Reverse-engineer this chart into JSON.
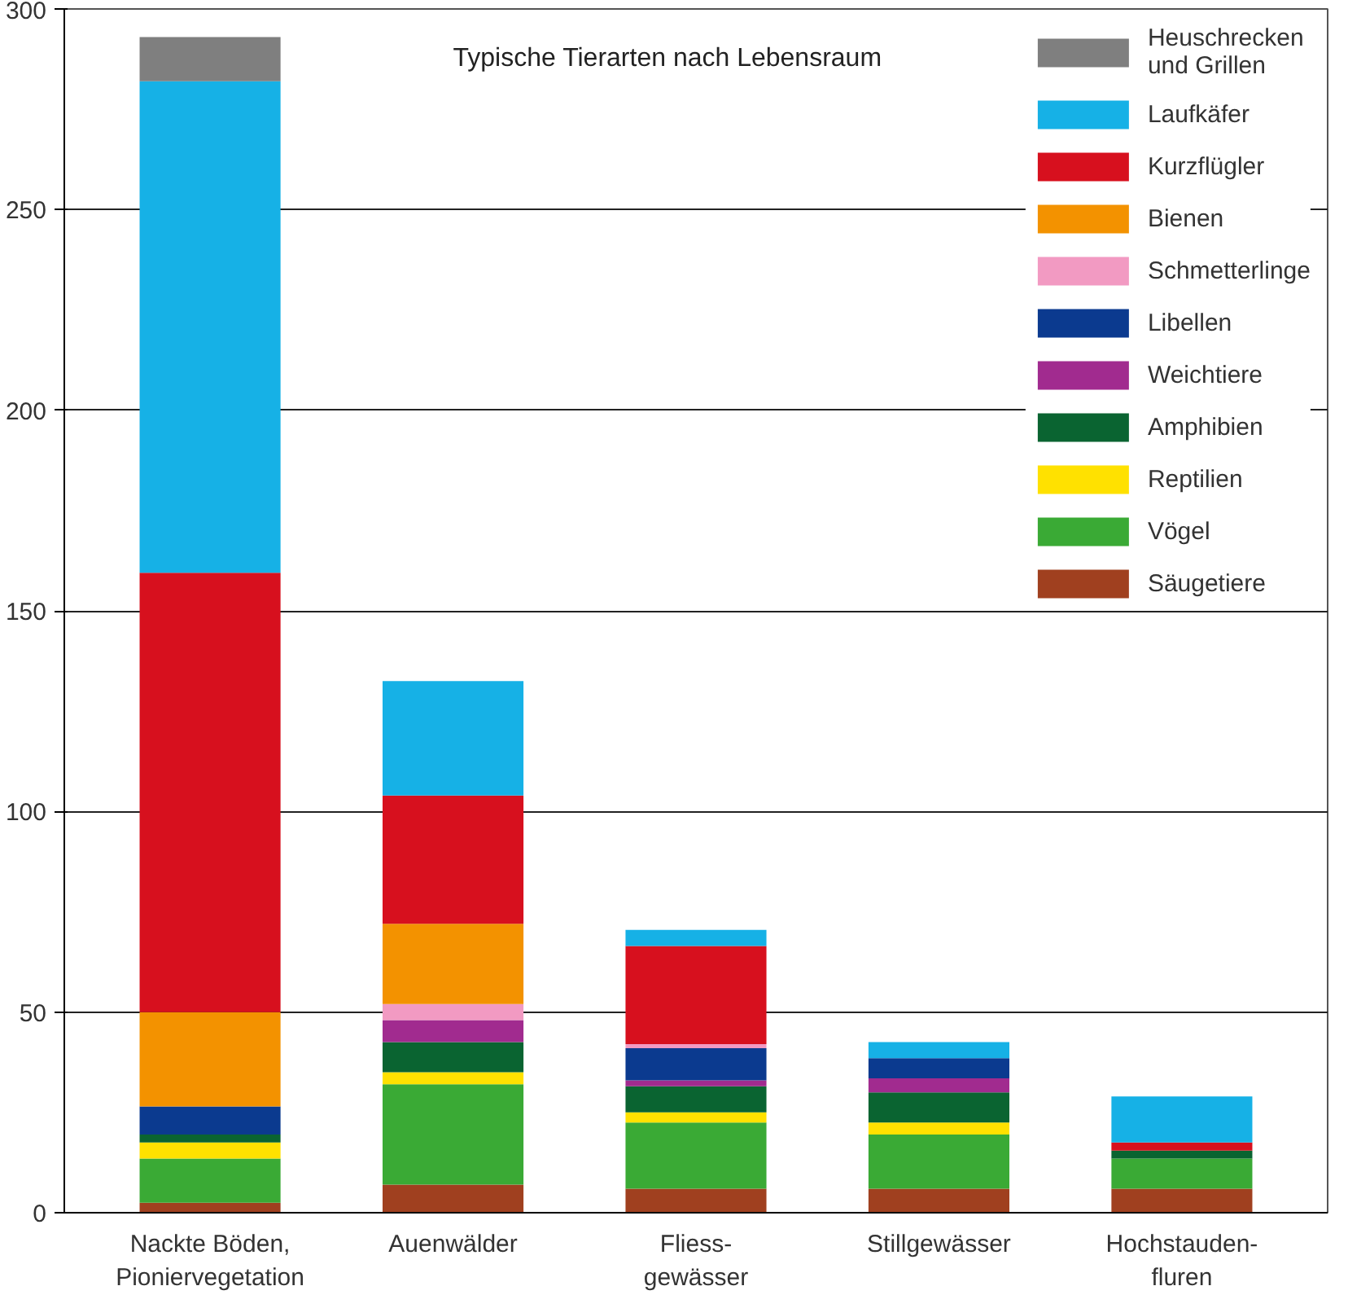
{
  "chart_data": {
    "type": "bar",
    "stacked": true,
    "title": "Typische Tierarten nach Lebensraum",
    "categories": [
      "Nackte Böden,\nPioniervegetation",
      "Auenwälder",
      "Fliess-\ngewässer",
      "Stillgewässer",
      "Hochstauden-\nfluren"
    ],
    "series": [
      {
        "name": "Säugetiere",
        "color": "#a0401f",
        "values": [
          2.5,
          7,
          6,
          6,
          6
        ]
      },
      {
        "name": "Vögel",
        "color": "#3aaa35",
        "values": [
          11,
          25,
          16.5,
          13.5,
          7.5
        ]
      },
      {
        "name": "Reptilien",
        "color": "#ffe100",
        "values": [
          4,
          3,
          2.5,
          3,
          0
        ]
      },
      {
        "name": "Amphibien",
        "color": "#0a6431",
        "values": [
          2,
          7.5,
          6.5,
          7.5,
          2
        ]
      },
      {
        "name": "Weichtiere",
        "color": "#a12b8f",
        "values": [
          0,
          5.5,
          1.5,
          3.5,
          0
        ]
      },
      {
        "name": "Libellen",
        "color": "#0b3a8f",
        "values": [
          7,
          0,
          8,
          5,
          0
        ]
      },
      {
        "name": "Schmetterlinge",
        "color": "#f29ac2",
        "values": [
          0,
          4,
          1,
          0,
          0
        ]
      },
      {
        "name": "Bienen",
        "color": "#f39200",
        "values": [
          23.5,
          20,
          0,
          0,
          0
        ]
      },
      {
        "name": "Kurzflügler",
        "color": "#d7101e",
        "values": [
          109.5,
          32,
          24.5,
          0,
          2
        ]
      },
      {
        "name": "Laufkäfer",
        "color": "#16b1e6",
        "values": [
          122.5,
          28.5,
          4,
          4,
          11.5
        ]
      },
      {
        "name": "Heuschrecken\nund Grillen",
        "color": "#7f7f7f",
        "values": [
          11,
          0,
          0,
          0,
          0
        ]
      }
    ],
    "ylim": [
      0,
      300
    ],
    "yticks": [
      0,
      50,
      100,
      150,
      200,
      250,
      300
    ],
    "grid": "y",
    "legend": "top right"
  }
}
